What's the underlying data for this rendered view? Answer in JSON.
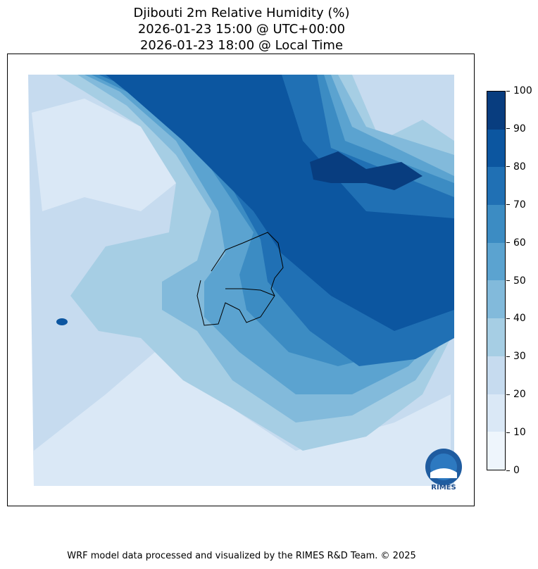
{
  "title": {
    "line1": "Djibouti 2m Relative Humidity (%)",
    "line2": "2026-01-23 15:00 @ UTC+00:00",
    "line3": "2026-01-23 18:00 @ Local Time"
  },
  "colorbar": {
    "ticks": [
      "0",
      "10",
      "20",
      "30",
      "40",
      "50",
      "60",
      "70",
      "80",
      "90",
      "100"
    ],
    "colors": [
      "#eef5fc",
      "#dae8f6",
      "#c6dbef",
      "#a6cee4",
      "#82badb",
      "#5ba3d0",
      "#3c8cc3",
      "#2070b4",
      "#0c56a0",
      "#083d7f"
    ]
  },
  "logo": {
    "text": "RIMES"
  },
  "footer": "WRF model data processed and visualized by the RIMES R&D Team. © 2025"
}
